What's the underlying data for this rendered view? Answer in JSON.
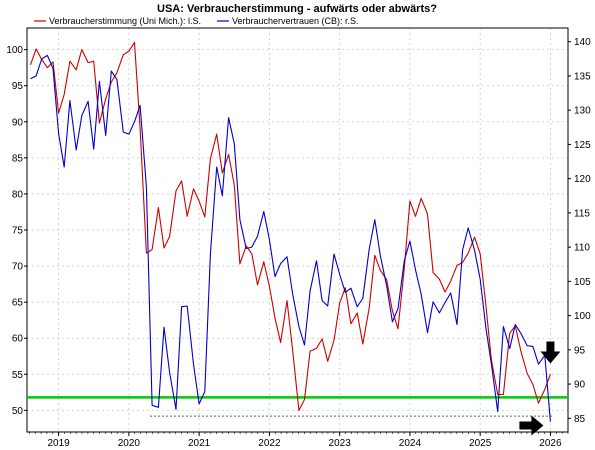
{
  "chart_data": {
    "type": "line",
    "title": "USA: Verbraucherstimmung - aufwärts oder abwärts?",
    "legend_position": "top-left",
    "grid": true,
    "x_ticks": [
      "2019",
      "2020",
      "2021",
      "2022",
      "2023",
      "2024",
      "2025",
      "2026"
    ],
    "xlim": [
      2018.55,
      2026.25
    ],
    "left_axis": {
      "ticks": [
        50,
        55,
        60,
        65,
        70,
        75,
        80,
        85,
        90,
        95,
        100
      ],
      "ylim": [
        47,
        103
      ]
    },
    "right_axis": {
      "ticks": [
        85,
        90,
        95,
        100,
        105,
        110,
        115,
        120,
        125,
        130,
        135,
        140
      ],
      "ylim": [
        83,
        142
      ]
    },
    "colors": {
      "red": "#cc0000",
      "blue": "#0000cc",
      "green": "#00cc00",
      "ref": "#2e7d32"
    },
    "series": [
      {
        "name": "Verbraucherstimmung (Uni Mich.): l.S.",
        "axis": "left",
        "color": "#cc0000",
        "x": [
          2018.6,
          2018.68,
          2018.76,
          2018.84,
          2018.92,
          2019.0,
          2019.08,
          2019.16,
          2019.25,
          2019.33,
          2019.42,
          2019.5,
          2019.58,
          2019.67,
          2019.75,
          2019.83,
          2019.92,
          2020.0,
          2020.08,
          2020.16,
          2020.25,
          2020.33,
          2020.42,
          2020.5,
          2020.58,
          2020.67,
          2020.75,
          2020.83,
          2020.92,
          2021.0,
          2021.08,
          2021.16,
          2021.25,
          2021.33,
          2021.42,
          2021.5,
          2021.58,
          2021.67,
          2021.75,
          2021.83,
          2021.92,
          2022.0,
          2022.08,
          2022.16,
          2022.25,
          2022.33,
          2022.42,
          2022.5,
          2022.58,
          2022.67,
          2022.75,
          2022.83,
          2022.92,
          2023.0,
          2023.08,
          2023.16,
          2023.25,
          2023.33,
          2023.42,
          2023.5,
          2023.58,
          2023.67,
          2023.75,
          2023.83,
          2023.92,
          2024.0,
          2024.08,
          2024.16,
          2024.25,
          2024.33,
          2024.42,
          2024.5,
          2024.58,
          2024.67,
          2024.75,
          2024.83,
          2024.92,
          2025.0,
          2025.08,
          2025.16,
          2025.25,
          2025.33,
          2025.42,
          2025.5,
          2025.58,
          2025.67,
          2025.75,
          2025.83,
          2025.92,
          2026.0
        ],
        "values": [
          97.9,
          100.1,
          98.6,
          97.5,
          98.3,
          91.2,
          93.8,
          98.4,
          97.2,
          100.0,
          98.2,
          98.4,
          89.8,
          93.2,
          95.5,
          96.8,
          99.3,
          99.8,
          101.0,
          89.1,
          71.8,
          72.3,
          78.1,
          72.5,
          74.1,
          80.4,
          81.8,
          76.9,
          80.7,
          79.0,
          76.8,
          84.9,
          88.3,
          82.9,
          85.5,
          81.2,
          70.3,
          72.8,
          71.7,
          67.4,
          70.6,
          67.2,
          62.8,
          59.4,
          65.2,
          58.4,
          50.0,
          51.5,
          58.2,
          58.6,
          59.9,
          56.8,
          59.7,
          64.9,
          67.0,
          62.0,
          63.5,
          59.2,
          64.2,
          71.5,
          69.4,
          68.1,
          63.8,
          61.3,
          69.7,
          79.0,
          76.9,
          79.4,
          77.2,
          69.1,
          68.2,
          66.4,
          67.9,
          70.1,
          70.5,
          71.8,
          74.0,
          71.7,
          64.7,
          57.0,
          52.2,
          52.2,
          60.7,
          61.7,
          58.2,
          55.1,
          53.6,
          51.0,
          52.9,
          55.0
        ]
      },
      {
        "name": "Verbrauchervertrauen (CB): r.S.",
        "axis": "right",
        "color": "#0000cc",
        "x": [
          2018.6,
          2018.68,
          2018.76,
          2018.84,
          2018.92,
          2019.0,
          2019.08,
          2019.16,
          2019.25,
          2019.33,
          2019.42,
          2019.5,
          2019.58,
          2019.67,
          2019.75,
          2019.83,
          2019.92,
          2020.0,
          2020.08,
          2020.16,
          2020.25,
          2020.33,
          2020.42,
          2020.5,
          2020.58,
          2020.67,
          2020.75,
          2020.83,
          2020.92,
          2021.0,
          2021.08,
          2021.16,
          2021.25,
          2021.33,
          2021.42,
          2021.5,
          2021.58,
          2021.67,
          2021.75,
          2021.83,
          2021.92,
          2022.0,
          2022.08,
          2022.16,
          2022.25,
          2022.33,
          2022.42,
          2022.5,
          2022.58,
          2022.67,
          2022.75,
          2022.83,
          2022.92,
          2023.0,
          2023.08,
          2023.16,
          2023.25,
          2023.33,
          2023.42,
          2023.5,
          2023.58,
          2023.67,
          2023.75,
          2023.83,
          2023.92,
          2024.0,
          2024.08,
          2024.16,
          2024.25,
          2024.33,
          2024.42,
          2024.5,
          2024.58,
          2024.67,
          2024.75,
          2024.83,
          2024.92,
          2025.0,
          2025.08,
          2025.16,
          2025.25,
          2025.33,
          2025.42,
          2025.5,
          2025.58,
          2025.67,
          2025.75,
          2025.83,
          2025.92,
          2026.0
        ],
        "values": [
          134.6,
          135.0,
          137.5,
          138.0,
          136.1,
          126.6,
          121.7,
          131.4,
          124.2,
          129.2,
          131.3,
          124.3,
          134.2,
          126.3,
          135.7,
          134.5,
          126.8,
          126.5,
          128.3,
          130.7,
          118.8,
          86.9,
          86.6,
          98.3,
          91.7,
          86.3,
          101.3,
          101.4,
          92.9,
          87.1,
          88.9,
          109.0,
          121.7,
          117.5,
          128.9,
          125.1,
          114.0,
          109.8,
          110.0,
          111.6,
          115.2,
          111.1,
          105.7,
          107.6,
          108.6,
          103.2,
          98.4,
          95.7,
          103.6,
          108.0,
          102.2,
          101.4,
          109.0,
          106.0,
          103.4,
          104.0,
          101.3,
          102.5,
          109.7,
          114.0,
          108.7,
          104.3,
          99.1,
          101.0,
          108.0,
          110.9,
          106.7,
          103.1,
          97.5,
          102.0,
          100.4,
          101.9,
          103.3,
          98.7,
          109.6,
          112.8,
          109.5,
          105.3,
          98.3,
          92.9,
          86.0,
          98.4,
          95.2,
          98.7,
          97.4,
          95.6,
          95.5,
          92.9,
          94.2,
          84.5
        ]
      }
    ],
    "reference_lines": [
      {
        "axis": "left",
        "value": 51.8,
        "color": "#00cc00",
        "style": "solid"
      },
      {
        "axis": "left",
        "value": 49.2,
        "color": "#2e7d32",
        "style": "dashed",
        "x_from": 2020.3,
        "x_to": 2026.05
      }
    ],
    "annotations": [
      {
        "type": "arrow-down",
        "x": 2026.0,
        "axis": "left",
        "value": 56.5
      },
      {
        "type": "arrow-right",
        "x": 2025.9,
        "axis": "left",
        "value": 47.9
      }
    ]
  }
}
